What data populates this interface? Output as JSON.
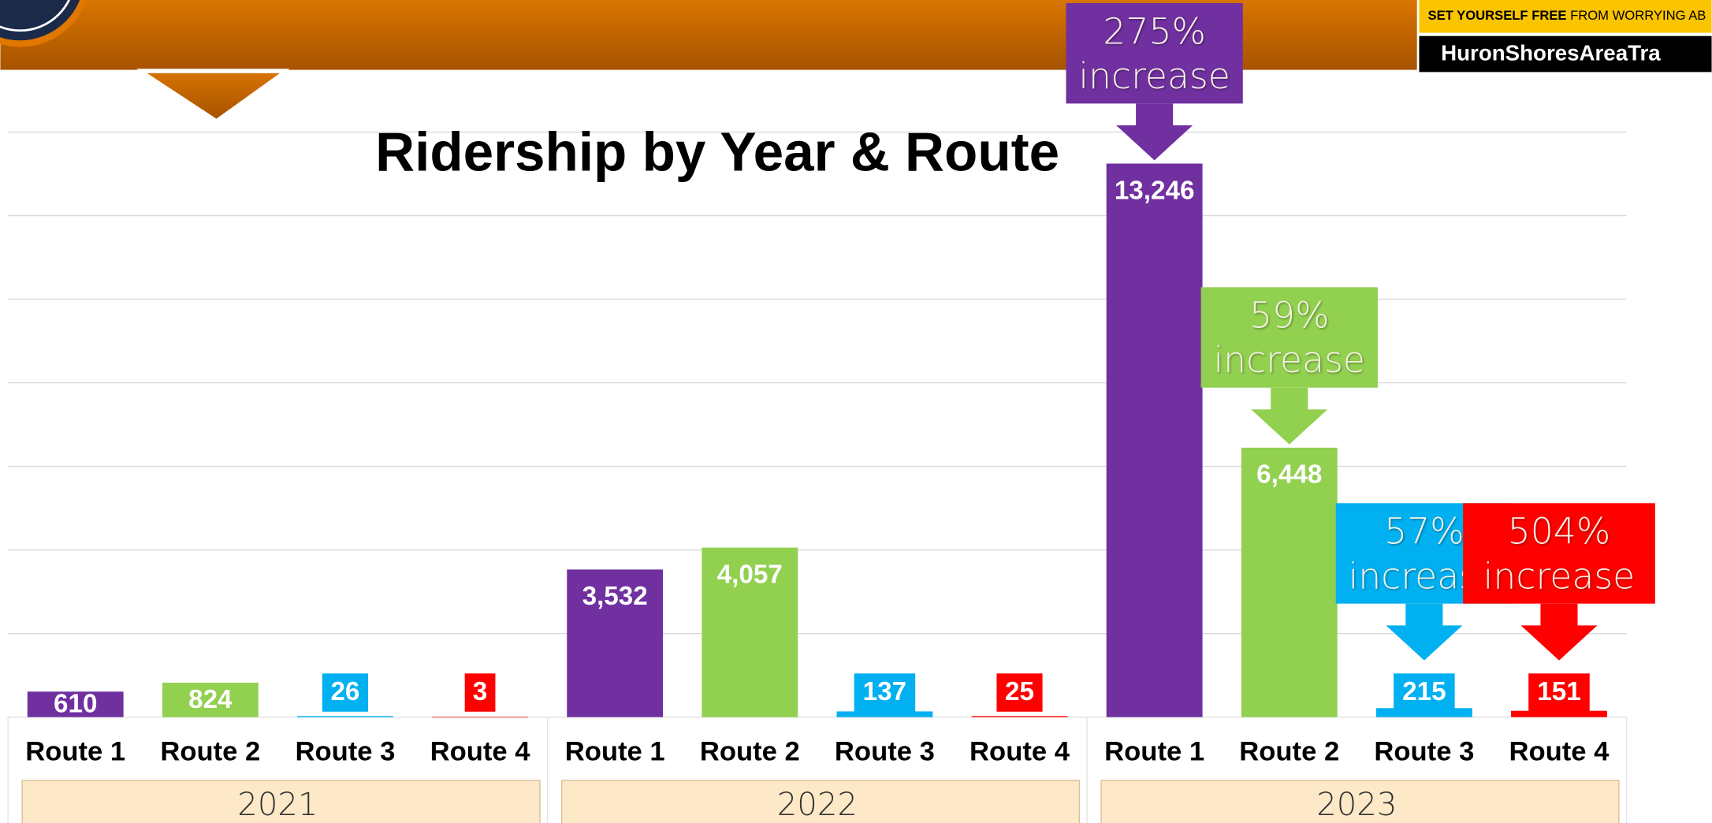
{
  "header": {
    "tagline_bold": "SET YOURSELF FREE",
    "tagline": "FROM WORRYING AB",
    "site": "HuronShoresAreaTra"
  },
  "chart_data": {
    "type": "bar",
    "title": "Ridership by Year & Route",
    "categories": [
      "2021",
      "2022",
      "2023"
    ],
    "series": [
      {
        "name": "Route 1",
        "color": "#7030a0",
        "values": [
          610,
          3532,
          13246
        ],
        "value_labels": [
          "610",
          "3,532",
          "13,246"
        ]
      },
      {
        "name": "Route 2",
        "color": "#92d050",
        "values": [
          824,
          4057,
          6448
        ],
        "value_labels": [
          "824",
          "4,057",
          "6,448"
        ]
      },
      {
        "name": "Route 3",
        "color": "#00b0f0",
        "values": [
          26,
          137,
          215
        ],
        "value_labels": [
          "26",
          "137",
          "215"
        ]
      },
      {
        "name": "Route 4",
        "color": "#ff0000",
        "values": [
          3,
          25,
          151
        ],
        "value_labels": [
          "3",
          "25",
          "151"
        ]
      }
    ],
    "annotations": [
      "275% increase",
      "59% increase",
      "57% increase",
      "504% increase"
    ],
    "ylim": [
      0,
      14000
    ],
    "yticks": [
      0,
      2000,
      4000,
      6000,
      8000,
      10000,
      12000,
      14000
    ],
    "grid": true
  }
}
